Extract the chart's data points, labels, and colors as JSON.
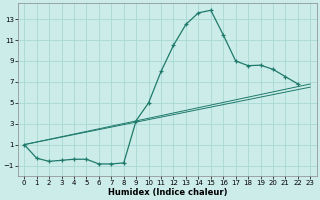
{
  "xlabel": "Humidex (Indice chaleur)",
  "bg_color": "#ccecea",
  "grid_color": "#a8d8d5",
  "line_color": "#1e7a6a",
  "xlim": [
    -0.5,
    23.5
  ],
  "ylim": [
    -2.0,
    14.5
  ],
  "xticks": [
    0,
    1,
    2,
    3,
    4,
    5,
    6,
    7,
    8,
    9,
    10,
    11,
    12,
    13,
    14,
    15,
    16,
    17,
    18,
    19,
    20,
    21,
    22,
    23
  ],
  "yticks": [
    -1,
    1,
    3,
    5,
    7,
    9,
    11,
    13
  ],
  "line1_x": [
    0,
    1,
    2,
    3,
    4,
    5,
    6,
    7,
    8,
    9,
    10,
    11,
    12,
    13,
    14,
    15,
    16,
    17,
    18,
    19,
    20,
    21,
    22
  ],
  "line1_y": [
    1.0,
    -0.3,
    -0.6,
    -0.5,
    -0.4,
    -0.4,
    -0.85,
    -0.85,
    -0.75,
    3.3,
    5.0,
    8.0,
    10.5,
    12.5,
    13.6,
    13.85,
    11.5,
    9.0,
    8.55,
    8.6,
    8.2,
    7.5,
    6.8
  ],
  "line2_x": [
    0,
    23
  ],
  "line2_y": [
    1.0,
    6.5
  ],
  "line3_x": [
    0,
    23
  ],
  "line3_y": [
    1.0,
    6.8
  ],
  "figw": 3.2,
  "figh": 2.0,
  "dpi": 100
}
